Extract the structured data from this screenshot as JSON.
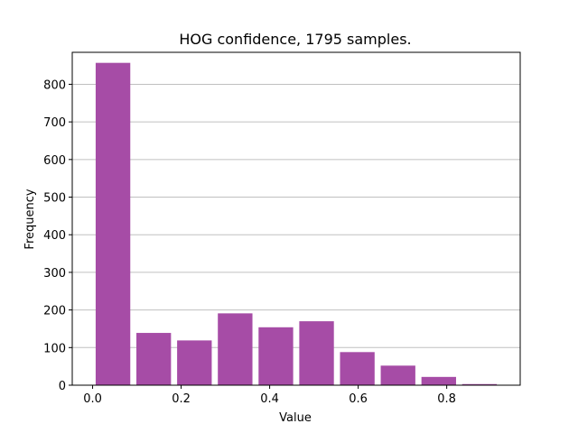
{
  "chart_data": {
    "type": "bar",
    "title": "HOG confidence, 1795 samples.",
    "xlabel": "Value",
    "ylabel": "Frequency",
    "bin_width": 0.092,
    "bar_fraction": 0.85,
    "bins": [
      {
        "x0": 0.0,
        "count": 857
      },
      {
        "x0": 0.092,
        "count": 139
      },
      {
        "x0": 0.184,
        "count": 119
      },
      {
        "x0": 0.276,
        "count": 191
      },
      {
        "x0": 0.368,
        "count": 154
      },
      {
        "x0": 0.46,
        "count": 170
      },
      {
        "x0": 0.552,
        "count": 88
      },
      {
        "x0": 0.644,
        "count": 52
      },
      {
        "x0": 0.736,
        "count": 22
      },
      {
        "x0": 0.828,
        "count": 3
      }
    ],
    "xlim": [
      -0.046,
      0.966
    ],
    "ylim": [
      0,
      885
    ],
    "xticks": [
      0.0,
      0.2,
      0.4,
      0.6,
      0.8
    ],
    "xtick_labels": [
      "0.0",
      "0.2",
      "0.4",
      "0.6",
      "0.8"
    ],
    "yticks": [
      0,
      100,
      200,
      300,
      400,
      500,
      600,
      700,
      800
    ],
    "ytick_labels": [
      "0",
      "100",
      "200",
      "300",
      "400",
      "500",
      "600",
      "700",
      "800"
    ],
    "grid": {
      "y": true,
      "x": false
    },
    "colors": {
      "bar": "#a64ca6",
      "grid": "#c0c0c0",
      "axis": "#000000"
    }
  }
}
